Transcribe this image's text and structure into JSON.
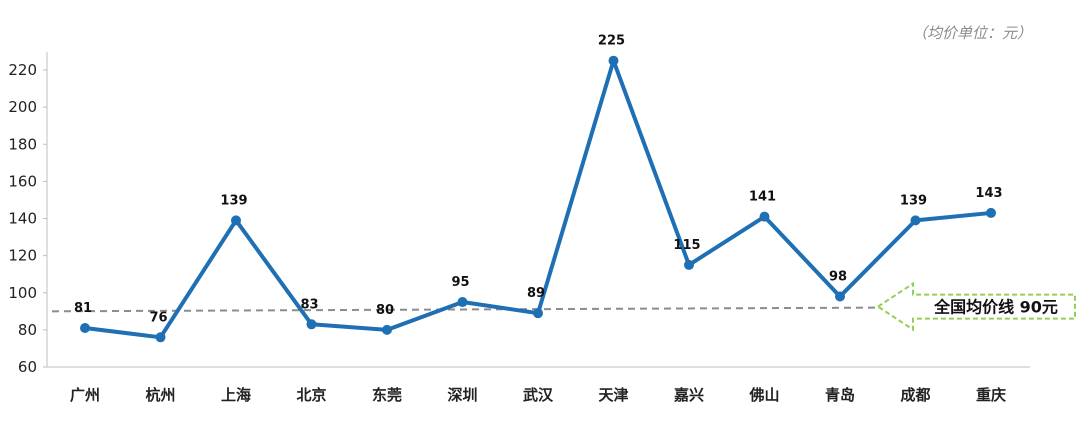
{
  "chart_data": {
    "type": "line",
    "unit_note": "（均价单位：元）",
    "categories": [
      "广州",
      "杭州",
      "上海",
      "北京",
      "东莞",
      "深圳",
      "武汉",
      "天津",
      "嘉兴",
      "佛山",
      "青岛",
      "成都",
      "重庆"
    ],
    "series": [
      {
        "values": [
          81,
          76,
          139,
          83,
          80,
          95,
          89,
          225,
          115,
          141,
          98,
          139,
          143
        ],
        "color": "#1f6fb5"
      }
    ],
    "ylim": [
      60,
      230
    ],
    "yticks": [
      60,
      80,
      100,
      120,
      140,
      160,
      180,
      200,
      220
    ],
    "reference_line": {
      "label": "全国均价线  90元",
      "style": "dashed",
      "color": "#8c8c8c"
    },
    "arrow_color": "#92d050",
    "grid": false,
    "legend": "none"
  }
}
